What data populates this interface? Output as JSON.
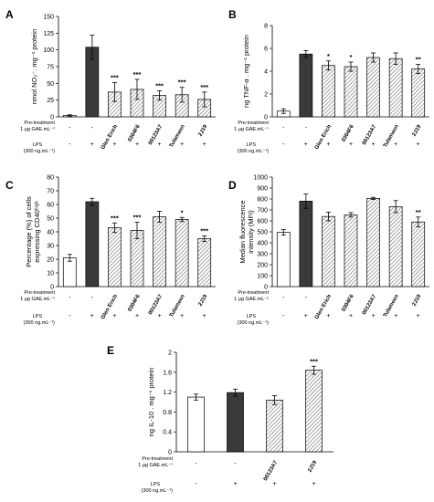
{
  "pretreatment_label": [
    "Pre-treatment",
    "1 µg GAE.mL⁻¹"
  ],
  "lps_label": [
    "LPS",
    "(300 ng.mL⁻¹)"
  ],
  "pattern_colors": {
    "fill_dark": "#3a3a3a",
    "stroke": "#000000",
    "hatch": "#6a6a6a"
  },
  "chart_data": [
    {
      "panel": "A",
      "type": "bar",
      "ylabel": "nmol NO₂⁻. mg⁻¹ protein",
      "ylim": [
        0,
        150
      ],
      "yticks": [
        "0",
        "25",
        "50",
        "75",
        "100",
        "125",
        "150"
      ],
      "categories": [
        "-",
        "-",
        "Glen Erich",
        "0304F6",
        "00123A7",
        "Tulameen",
        "2J19"
      ],
      "pretreatment": [
        "-",
        "-",
        "Glen Erich",
        "0304F6",
        "00123A7",
        "Tulameen",
        "2J19"
      ],
      "lps": [
        "-",
        "+",
        "+",
        "+",
        "+",
        "+",
        "+"
      ],
      "values": [
        2,
        104,
        37,
        41,
        32,
        33,
        26
      ],
      "errors": [
        1,
        18,
        14,
        15,
        7,
        11,
        11
      ],
      "significance": [
        "",
        "",
        "***",
        "***",
        "***",
        "***",
        "***"
      ]
    },
    {
      "panel": "B",
      "type": "bar",
      "ylabel": "ng TNF-α . mg⁻¹ protein",
      "ylim": [
        0,
        8
      ],
      "yticks": [
        "0",
        "2",
        "4",
        "6",
        "8"
      ],
      "categories": [
        "-",
        "-",
        "Glen Erich",
        "0304F6",
        "00123A7",
        "Tulameen",
        "2J19"
      ],
      "pretreatment": [
        "-",
        "-",
        "Glen Erich",
        "0304F6",
        "00123A7",
        "Tulameen",
        "2J19"
      ],
      "lps": [
        "-",
        "+",
        "+",
        "+",
        "+",
        "+",
        "+"
      ],
      "values": [
        0.5,
        5.5,
        4.5,
        4.4,
        5.2,
        5.1,
        4.2
      ],
      "errors": [
        0.2,
        0.3,
        0.4,
        0.4,
        0.4,
        0.5,
        0.4
      ],
      "significance": [
        "",
        "",
        "*",
        "*",
        "",
        "",
        "**"
      ]
    },
    {
      "panel": "C",
      "type": "bar",
      "ylabel": "Percentage (%) of cells expressing CD40ʰⁱᵍʰ",
      "ylim": [
        0,
        80
      ],
      "yticks": [
        "0",
        "10",
        "20",
        "30",
        "40",
        "50",
        "60",
        "70",
        "80"
      ],
      "categories": [
        "-",
        "-",
        "Glen Erich",
        "0304F6",
        "00123A7",
        "Tulameen",
        "2J19"
      ],
      "pretreatment": [
        "-",
        "-",
        "Glen Erich",
        "0304F6",
        "00123A7",
        "Tulameen",
        "2J19"
      ],
      "lps": [
        "-",
        "+",
        "+",
        "+",
        "+",
        "+",
        "+"
      ],
      "values": [
        21,
        62,
        43,
        41,
        51,
        49,
        35
      ],
      "errors": [
        2.5,
        2.5,
        3.5,
        6,
        4,
        1.5,
        2
      ],
      "significance": [
        "",
        "",
        "***",
        "***",
        "",
        "*",
        "***"
      ]
    },
    {
      "panel": "D",
      "type": "bar",
      "ylabel": "Median fluorescence intensity (MFI)",
      "ylim": [
        0,
        1000
      ],
      "yticks": [
        "0",
        "100",
        "200",
        "300",
        "400",
        "500",
        "600",
        "700",
        "800",
        "900",
        "1000"
      ],
      "categories": [
        "-",
        "-",
        "Glen Erich",
        "0304F6",
        "00123A7",
        "Tulameen",
        "2J19"
      ],
      "pretreatment": [
        "-",
        "-",
        "Glen Erich",
        "0304F6",
        "00123A7",
        "Tulameen",
        "2J19"
      ],
      "lps": [
        "-",
        "+",
        "+",
        "+",
        "+",
        "+",
        "+"
      ],
      "values": [
        495,
        780,
        640,
        655,
        805,
        730,
        590
      ],
      "errors": [
        25,
        65,
        40,
        20,
        10,
        55,
        45
      ],
      "significance": [
        "",
        "",
        "",
        "",
        "",
        "",
        "**"
      ]
    },
    {
      "panel": "E",
      "type": "bar",
      "ylabel": "ng IL-10 . mg⁻¹ protein",
      "ylim": [
        0,
        2
      ],
      "yticks": [
        "0",
        "0.4",
        "0.8",
        "1.2",
        "1.6",
        "2"
      ],
      "categories": [
        "-",
        "-",
        "00123A7",
        "2J19"
      ],
      "pretreatment": [
        "-",
        "-",
        "00123A7",
        "2J19"
      ],
      "lps": [
        "-",
        "+",
        "+",
        "+"
      ],
      "values": [
        1.1,
        1.19,
        1.04,
        1.64
      ],
      "errors": [
        0.06,
        0.07,
        0.09,
        0.08
      ],
      "significance": [
        "",
        "",
        "",
        "***"
      ]
    }
  ]
}
